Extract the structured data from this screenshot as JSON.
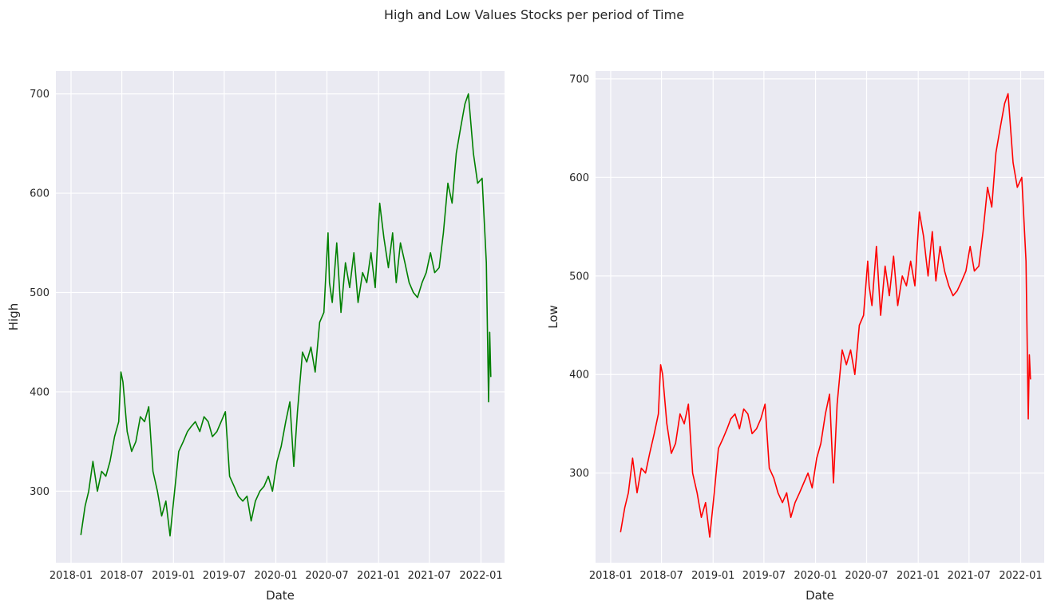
{
  "figure": {
    "title": "High and Low Values Stocks per period of Time",
    "background": "#ffffff",
    "axes_background": "#eaeaf2",
    "grid_color": "#ffffff"
  },
  "chart_data": [
    {
      "type": "line",
      "xlabel": "Date",
      "ylabel": "High",
      "line_color": "#008000",
      "grid": true,
      "xlim": [
        "2017-11-08",
        "2022-03-26"
      ],
      "ylim": [
        228,
        723
      ],
      "x_ticks": [
        "2018-01",
        "2018-07",
        "2019-01",
        "2019-07",
        "2020-01",
        "2020-07",
        "2021-01",
        "2021-07",
        "2022-01"
      ],
      "y_ticks": [
        300,
        400,
        500,
        600,
        700
      ],
      "series": [
        {
          "x": [
            "2018-02-05",
            "2018-02-20",
            "2018-03-05",
            "2018-03-20",
            "2018-04-05",
            "2018-04-20",
            "2018-05-05",
            "2018-05-20",
            "2018-06-05",
            "2018-06-20",
            "2018-06-28",
            "2018-07-05",
            "2018-07-20",
            "2018-08-05",
            "2018-08-20",
            "2018-09-05",
            "2018-09-20",
            "2018-10-05",
            "2018-10-20",
            "2018-11-05",
            "2018-11-20",
            "2018-12-05",
            "2018-12-20",
            "2019-01-05",
            "2019-01-20",
            "2019-02-05",
            "2019-02-20",
            "2019-03-05",
            "2019-03-20",
            "2019-04-05",
            "2019-04-20",
            "2019-05-05",
            "2019-05-20",
            "2019-06-05",
            "2019-06-20",
            "2019-07-05",
            "2019-07-20",
            "2019-08-05",
            "2019-08-20",
            "2019-09-05",
            "2019-09-20",
            "2019-10-05",
            "2019-10-20",
            "2019-11-05",
            "2019-11-20",
            "2019-12-05",
            "2019-12-20",
            "2020-01-05",
            "2020-01-20",
            "2020-02-05",
            "2020-02-20",
            "2020-03-05",
            "2020-03-18",
            "2020-04-05",
            "2020-04-20",
            "2020-05-05",
            "2020-05-20",
            "2020-06-05",
            "2020-06-20",
            "2020-07-05",
            "2020-07-10",
            "2020-07-20",
            "2020-08-05",
            "2020-08-20",
            "2020-09-05",
            "2020-09-20",
            "2020-10-05",
            "2020-10-20",
            "2020-11-05",
            "2020-11-20",
            "2020-12-05",
            "2020-12-20",
            "2021-01-05",
            "2021-01-20",
            "2021-02-05",
            "2021-02-20",
            "2021-03-05",
            "2021-03-20",
            "2021-04-05",
            "2021-04-20",
            "2021-05-05",
            "2021-05-20",
            "2021-06-05",
            "2021-06-20",
            "2021-07-05",
            "2021-07-20",
            "2021-08-05",
            "2021-08-20",
            "2021-09-05",
            "2021-09-20",
            "2021-10-05",
            "2021-10-20",
            "2021-11-05",
            "2021-11-17",
            "2021-12-05",
            "2021-12-20",
            "2022-01-05",
            "2022-01-20",
            "2022-01-28",
            "2022-02-01",
            "2022-02-05"
          ],
          "values": [
            256,
            285,
            300,
            330,
            300,
            320,
            315,
            330,
            355,
            370,
            420,
            410,
            360,
            340,
            350,
            375,
            370,
            385,
            320,
            300,
            275,
            290,
            255,
            300,
            340,
            350,
            360,
            365,
            370,
            360,
            375,
            370,
            355,
            360,
            370,
            380,
            315,
            305,
            295,
            290,
            295,
            270,
            290,
            300,
            305,
            315,
            300,
            330,
            345,
            370,
            390,
            325,
            380,
            440,
            430,
            445,
            420,
            470,
            480,
            560,
            510,
            490,
            550,
            480,
            530,
            505,
            540,
            490,
            520,
            510,
            540,
            505,
            590,
            555,
            525,
            560,
            510,
            550,
            530,
            510,
            500,
            495,
            510,
            520,
            540,
            520,
            525,
            560,
            610,
            590,
            640,
            665,
            690,
            700,
            640,
            610,
            615,
            530,
            390,
            460,
            415
          ]
        }
      ]
    },
    {
      "type": "line",
      "xlabel": "Date",
      "ylabel": "Low",
      "line_color": "#ff0000",
      "grid": true,
      "xlim": [
        "2017-11-08",
        "2022-03-26"
      ],
      "ylim": [
        209,
        708
      ],
      "x_ticks": [
        "2018-01",
        "2018-07",
        "2019-01",
        "2019-07",
        "2020-01",
        "2020-07",
        "2021-01",
        "2021-07",
        "2022-01"
      ],
      "y_ticks": [
        300,
        400,
        500,
        600,
        700
      ],
      "series": [
        {
          "x": [
            "2018-02-05",
            "2018-02-20",
            "2018-03-05",
            "2018-03-20",
            "2018-04-05",
            "2018-04-20",
            "2018-05-05",
            "2018-05-20",
            "2018-06-05",
            "2018-06-20",
            "2018-06-28",
            "2018-07-05",
            "2018-07-20",
            "2018-08-05",
            "2018-08-20",
            "2018-09-05",
            "2018-09-20",
            "2018-10-05",
            "2018-10-20",
            "2018-11-05",
            "2018-11-20",
            "2018-12-05",
            "2018-12-20",
            "2019-01-05",
            "2019-01-20",
            "2019-02-05",
            "2019-02-20",
            "2019-03-05",
            "2019-03-20",
            "2019-04-05",
            "2019-04-20",
            "2019-05-05",
            "2019-05-20",
            "2019-06-05",
            "2019-06-20",
            "2019-07-05",
            "2019-07-20",
            "2019-08-05",
            "2019-08-20",
            "2019-09-05",
            "2019-09-20",
            "2019-10-05",
            "2019-10-20",
            "2019-11-05",
            "2019-11-20",
            "2019-12-05",
            "2019-12-20",
            "2020-01-05",
            "2020-01-20",
            "2020-02-05",
            "2020-02-20",
            "2020-03-05",
            "2020-03-18",
            "2020-04-05",
            "2020-04-20",
            "2020-05-05",
            "2020-05-20",
            "2020-06-05",
            "2020-06-20",
            "2020-07-05",
            "2020-07-10",
            "2020-07-20",
            "2020-08-05",
            "2020-08-20",
            "2020-09-05",
            "2020-09-20",
            "2020-10-05",
            "2020-10-20",
            "2020-11-05",
            "2020-11-20",
            "2020-12-05",
            "2020-12-20",
            "2021-01-05",
            "2021-01-20",
            "2021-02-05",
            "2021-02-20",
            "2021-03-05",
            "2021-03-20",
            "2021-04-05",
            "2021-04-20",
            "2021-05-05",
            "2021-05-20",
            "2021-06-05",
            "2021-06-20",
            "2021-07-05",
            "2021-07-20",
            "2021-08-05",
            "2021-08-20",
            "2021-09-05",
            "2021-09-20",
            "2021-10-05",
            "2021-10-20",
            "2021-11-05",
            "2021-11-17",
            "2021-12-05",
            "2021-12-20",
            "2022-01-05",
            "2022-01-20",
            "2022-01-28",
            "2022-02-01",
            "2022-02-05"
          ],
          "values": [
            240,
            265,
            280,
            315,
            280,
            305,
            300,
            320,
            340,
            360,
            410,
            400,
            350,
            320,
            330,
            360,
            350,
            370,
            300,
            280,
            255,
            270,
            235,
            280,
            325,
            335,
            345,
            355,
            360,
            345,
            365,
            360,
            340,
            345,
            355,
            370,
            305,
            295,
            280,
            270,
            280,
            255,
            270,
            280,
            290,
            300,
            285,
            315,
            330,
            360,
            380,
            290,
            370,
            425,
            410,
            425,
            400,
            450,
            460,
            515,
            490,
            470,
            530,
            460,
            510,
            480,
            520,
            470,
            500,
            490,
            515,
            490,
            565,
            540,
            500,
            545,
            495,
            530,
            505,
            490,
            480,
            485,
            495,
            505,
            530,
            505,
            510,
            545,
            590,
            570,
            625,
            650,
            675,
            685,
            615,
            590,
            600,
            515,
            355,
            420,
            395
          ]
        }
      ]
    }
  ]
}
